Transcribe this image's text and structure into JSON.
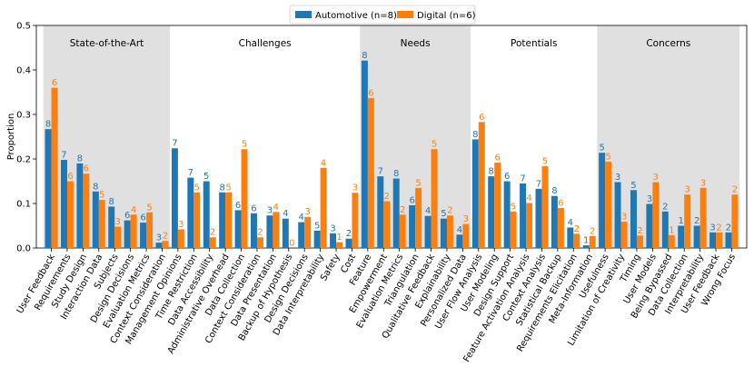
{
  "chart_data": {
    "type": "bar",
    "ylabel": "Proportion",
    "ylim": [
      0,
      0.5
    ],
    "yticks": [
      "0.0",
      "0.1",
      "0.2",
      "0.3",
      "0.4",
      "0.5"
    ],
    "yticks_values": [
      0,
      0.1,
      0.2,
      0.3,
      0.4,
      0.5
    ],
    "colors": {
      "automotive": "#1f77b4",
      "digital": "#ff7f0e",
      "shade": "#e0e0e0"
    },
    "series": [
      {
        "name": "Automotive (n=8)",
        "color": "#1f77b4"
      },
      {
        "name": "Digital (n=6)",
        "color": "#ff7f0e"
      }
    ],
    "sections": [
      {
        "title": "State-of-the-Art",
        "shaded": true,
        "categories": [
          {
            "label": "User Feedback",
            "values": [
              0.267,
              0.36
            ],
            "counts": [
              "8",
              "6"
            ]
          },
          {
            "label": "Requirements",
            "values": [
              0.198,
              0.15
            ],
            "counts": [
              "7",
              "6"
            ]
          },
          {
            "label": "Study Design",
            "values": [
              0.19,
              0.167
            ],
            "counts": [
              "8",
              "6"
            ]
          },
          {
            "label": "Interaction Data",
            "values": [
              0.127,
              0.108
            ],
            "counts": [
              "8",
              "5"
            ]
          },
          {
            "label": "Subjects",
            "values": [
              0.093,
              0.048
            ],
            "counts": [
              "8",
              "3"
            ]
          },
          {
            "label": "Design Decisions",
            "values": [
              0.062,
              0.075
            ],
            "counts": [
              "6",
              "4"
            ]
          },
          {
            "label": "Evaluation Metrics",
            "values": [
              0.057,
              0.08
            ],
            "counts": [
              "6",
              "5"
            ]
          },
          {
            "label": "Context Consideration",
            "values": [
              0.012,
              0.016
            ],
            "counts": [
              "3",
              "2"
            ]
          }
        ]
      },
      {
        "title": "Challenges",
        "shaded": false,
        "categories": [
          {
            "label": "Management Opinions",
            "values": [
              0.224,
              0.042
            ],
            "counts": [
              "7",
              "3"
            ]
          },
          {
            "label": "Time Restriction",
            "values": [
              0.158,
              0.125
            ],
            "counts": [
              "7",
              "5"
            ]
          },
          {
            "label": "Data Accessibility",
            "values": [
              0.15,
              0.024
            ],
            "counts": [
              "5",
              "2"
            ]
          },
          {
            "label": "Administrative Overhead",
            "values": [
              0.125,
              0.125
            ],
            "counts": [
              "8",
              "5"
            ]
          },
          {
            "label": "Data Collection",
            "values": [
              0.085,
              0.222
            ],
            "counts": [
              "6",
              "5"
            ]
          },
          {
            "label": "Context Consideration",
            "values": [
              0.078,
              0.024
            ],
            "counts": [
              "6",
              "2"
            ]
          },
          {
            "label": "Data Presentation",
            "values": [
              0.073,
              0.081
            ],
            "counts": [
              "3",
              "4"
            ]
          },
          {
            "label": "Backup of Hypothesis",
            "values": [
              0.066,
              0
            ],
            "counts": [
              "4",
              "0"
            ]
          },
          {
            "label": "Design Decisions",
            "values": [
              0.058,
              0.07
            ],
            "counts": [
              "4",
              "3"
            ]
          },
          {
            "label": "Data Interpretability",
            "values": [
              0.039,
              0.18
            ],
            "counts": [
              "5",
              "4"
            ]
          },
          {
            "label": "Safety",
            "values": [
              0.033,
              0.013
            ],
            "counts": [
              "3",
              "1"
            ]
          },
          {
            "label": "Cost",
            "values": [
              0.021,
              0.124
            ],
            "counts": [
              "2",
              "3"
            ]
          }
        ]
      },
      {
        "title": "Needs",
        "shaded": true,
        "categories": [
          {
            "label": "Feature",
            "values": [
              0.421,
              0.337
            ],
            "counts": [
              "8",
              "6"
            ]
          },
          {
            "label": "Empowerment",
            "values": [
              0.161,
              0.105
            ],
            "counts": [
              "7",
              "2"
            ]
          },
          {
            "label": "Evaluation Metrics",
            "values": [
              0.156,
              0.075
            ],
            "counts": [
              "8",
              "2"
            ]
          },
          {
            "label": "Triangulation",
            "values": [
              0.096,
              0.135
            ],
            "counts": [
              "6",
              "5"
            ]
          },
          {
            "label": "Qualitative Feedback",
            "values": [
              0.072,
              0.222
            ],
            "counts": [
              "4",
              "5"
            ]
          },
          {
            "label": "Explainability",
            "values": [
              0.066,
              0.073
            ],
            "counts": [
              "5",
              "2"
            ]
          },
          {
            "label": "Personalized Data",
            "values": [
              0.03,
              0.054
            ],
            "counts": [
              "4",
              "3"
            ]
          }
        ]
      },
      {
        "title": "Potentials",
        "shaded": false,
        "categories": [
          {
            "label": "User Flow Analysis",
            "values": [
              0.244,
              0.283
            ],
            "counts": [
              "8",
              "6"
            ]
          },
          {
            "label": "User Modeling",
            "values": [
              0.161,
              0.192
            ],
            "counts": [
              "8",
              "6"
            ]
          },
          {
            "label": "Design Support",
            "values": [
              0.15,
              0.082
            ],
            "counts": [
              "6",
              "5"
            ]
          },
          {
            "label": "Feature Activation Analysis",
            "values": [
              0.145,
              0.101
            ],
            "counts": [
              "7",
              "4"
            ]
          },
          {
            "label": "Context Analysis",
            "values": [
              0.133,
              0.184
            ],
            "counts": [
              "7",
              "5"
            ]
          },
          {
            "label": "Statistical Backup",
            "values": [
              0.117,
              0.09
            ],
            "counts": [
              "8",
              "6"
            ]
          },
          {
            "label": "Requirements Elicitation",
            "values": [
              0.046,
              0.032
            ],
            "counts": [
              "4",
              "2"
            ]
          },
          {
            "label": "Meta-Information",
            "values": [
              0.006,
              0.027
            ],
            "counts": [
              "1",
              "2"
            ]
          }
        ]
      },
      {
        "title": "Concerns",
        "shaded": true,
        "categories": [
          {
            "label": "Usefulness",
            "values": [
              0.214,
              0.194
            ],
            "counts": [
              "5",
              "5"
            ]
          },
          {
            "label": "Limitation of Creativity",
            "values": [
              0.148,
              0.059
            ],
            "counts": [
              "3",
              "3"
            ]
          },
          {
            "label": "Timing",
            "values": [
              0.13,
              0.028
            ],
            "counts": [
              "5",
              "2"
            ]
          },
          {
            "label": "User Models",
            "values": [
              0.099,
              0.148
            ],
            "counts": [
              "3",
              "3"
            ]
          },
          {
            "label": "Being Bypassed",
            "values": [
              0.082,
              0.029
            ],
            "counts": [
              "2",
              "1"
            ]
          },
          {
            "label": "Data Collection",
            "values": [
              0.05,
              0.12
            ],
            "counts": [
              "1",
              "3"
            ]
          },
          {
            "label": "Interpretability",
            "values": [
              0.05,
              0.135
            ],
            "counts": [
              "2",
              "3"
            ]
          },
          {
            "label": "User Feedback",
            "values": [
              0.035,
              0.035
            ],
            "counts": [
              "3",
              "2"
            ]
          },
          {
            "label": "Wrong Focus",
            "values": [
              0.035,
              0.12
            ],
            "counts": [
              "2",
              "2"
            ]
          }
        ]
      }
    ]
  }
}
